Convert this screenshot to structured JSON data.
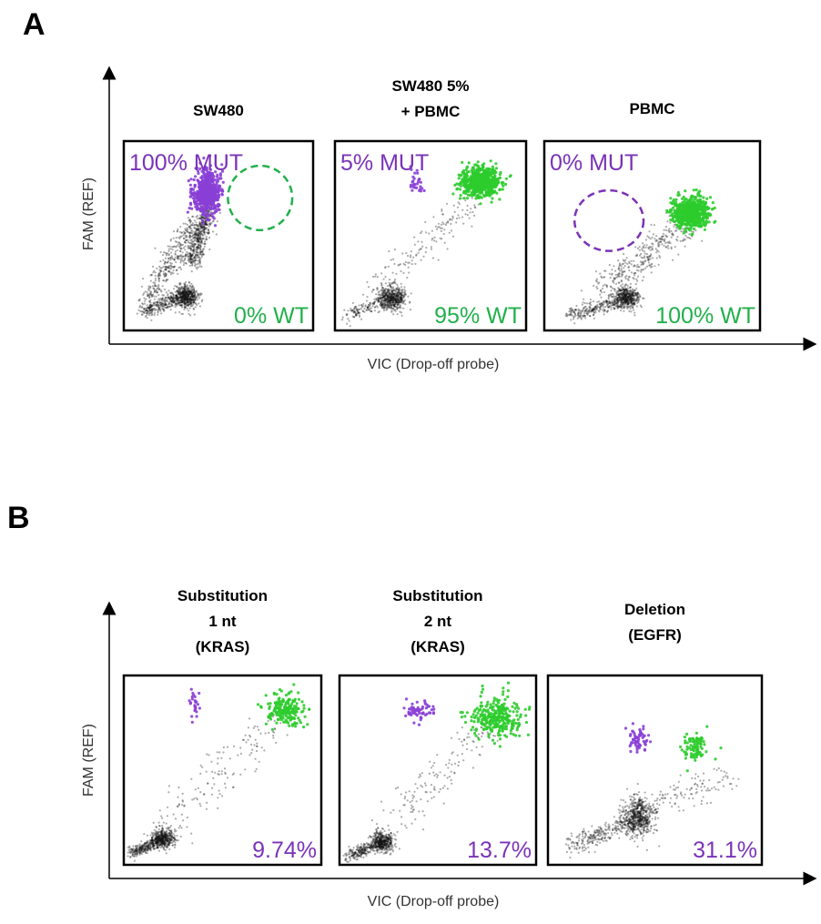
{
  "colors": {
    "mut": "#7a33b8",
    "wt": "#22b04b",
    "mut_dot": "#8a3fd6",
    "wt_dot": "#2ecc2e",
    "neg_dot": "#111111"
  },
  "chart_data": [
    {
      "type": "scatter",
      "panel": "A",
      "ylabel": "FAM (REF)",
      "xlabel": "VIC (Drop-off probe)",
      "xlim": [
        0,
        100
      ],
      "ylim": [
        0,
        100
      ],
      "subplots": [
        {
          "title": [
            "SW480"
          ],
          "mut_label": "100% MUT",
          "wt_label": "0% WT",
          "empty_gate": {
            "color": "wt",
            "cx": 72,
            "cy": 70,
            "rx": 17,
            "ry": 17
          },
          "clusters": [
            {
              "kind": "gauss",
              "color": "neg",
              "cx": 33,
              "cy": 18,
              "sx": 3,
              "sy": 3,
              "n": 500
            },
            {
              "kind": "line",
              "color": "neg",
              "x1": 10,
              "y1": 10,
              "x2": 32,
              "y2": 18,
              "sp": 2,
              "n": 300
            },
            {
              "kind": "line",
              "color": "neg",
              "x1": 12,
              "y1": 16,
              "x2": 40,
              "y2": 60,
              "sp": 3,
              "n": 350
            },
            {
              "kind": "line",
              "color": "neg",
              "x1": 36,
              "y1": 35,
              "x2": 44,
              "y2": 65,
              "sp": 2.5,
              "n": 500
            },
            {
              "kind": "gauss",
              "color": "mut",
              "cx": 44,
              "cy": 73,
              "sx": 3.5,
              "sy": 6,
              "n": 600
            }
          ]
        },
        {
          "title": [
            "SW480 5%",
            "+ PBMC"
          ],
          "mut_label": "5% MUT",
          "wt_label": "95% WT",
          "clusters": [
            {
              "kind": "gauss",
              "color": "neg",
              "cx": 30,
              "cy": 17,
              "sx": 3.5,
              "sy": 3,
              "n": 500
            },
            {
              "kind": "line",
              "color": "neg",
              "x1": 6,
              "y1": 8,
              "x2": 28,
              "y2": 16,
              "sp": 2,
              "n": 150
            },
            {
              "kind": "line",
              "color": "neg",
              "x1": 20,
              "y1": 20,
              "x2": 72,
              "y2": 68,
              "sp": 4,
              "n": 160
            },
            {
              "kind": "gauss",
              "color": "wt",
              "cx": 76,
              "cy": 78,
              "sx": 5,
              "sy": 4,
              "n": 600
            },
            {
              "kind": "gauss",
              "color": "mut",
              "cx": 43,
              "cy": 78,
              "sx": 2,
              "sy": 3,
              "n": 30
            }
          ]
        },
        {
          "title": [
            "PBMC"
          ],
          "mut_label": "0% MUT",
          "wt_label": "100% WT",
          "empty_gate": {
            "color": "mut",
            "cx": 30,
            "cy": 58,
            "rx": 16,
            "ry": 16
          },
          "clusters": [
            {
              "kind": "gauss",
              "color": "neg",
              "cx": 38,
              "cy": 17,
              "sx": 3,
              "sy": 3,
              "n": 450
            },
            {
              "kind": "line",
              "color": "neg",
              "x1": 12,
              "y1": 8,
              "x2": 36,
              "y2": 16,
              "sp": 2,
              "n": 250
            },
            {
              "kind": "line",
              "color": "neg",
              "x1": 25,
              "y1": 20,
              "x2": 66,
              "y2": 56,
              "sp": 4,
              "n": 350
            },
            {
              "kind": "gauss",
              "color": "wt",
              "cx": 68,
              "cy": 62,
              "sx": 4,
              "sy": 4,
              "n": 650
            }
          ]
        }
      ]
    },
    {
      "type": "scatter",
      "panel": "B",
      "ylabel": "FAM (REF)",
      "xlabel": "VIC (Drop-off probe)",
      "xlim": [
        0,
        100
      ],
      "ylim": [
        0,
        100
      ],
      "subplots": [
        {
          "title": [
            "Substitution",
            "1 nt",
            "(KRAS)"
          ],
          "value_label": "9.74%",
          "clusters": [
            {
              "kind": "gauss",
              "color": "neg",
              "cx": 20,
              "cy": 14,
              "sx": 3,
              "sy": 2.5,
              "n": 400
            },
            {
              "kind": "line",
              "color": "neg",
              "x1": 3,
              "y1": 6,
              "x2": 20,
              "y2": 13,
              "sp": 1.5,
              "n": 300
            },
            {
              "kind": "line",
              "color": "neg",
              "x1": 22,
              "y1": 20,
              "x2": 78,
              "y2": 78,
              "sp": 5,
              "n": 150
            },
            {
              "kind": "gauss",
              "color": "wt",
              "cx": 82,
              "cy": 82,
              "sx": 5,
              "sy": 4,
              "n": 200
            },
            {
              "kind": "gauss",
              "color": "mut",
              "cx": 36,
              "cy": 85,
              "sx": 1.5,
              "sy": 4,
              "n": 25
            }
          ]
        },
        {
          "title": [
            "Substitution",
            "2 nt",
            "(KRAS)"
          ],
          "value_label": "13.7%",
          "clusters": [
            {
              "kind": "gauss",
              "color": "neg",
              "cx": 22,
              "cy": 12,
              "sx": 3,
              "sy": 2.5,
              "n": 400
            },
            {
              "kind": "line",
              "color": "neg",
              "x1": 4,
              "y1": 4,
              "x2": 22,
              "y2": 12,
              "sp": 1.5,
              "n": 250
            },
            {
              "kind": "line",
              "color": "neg",
              "x1": 24,
              "y1": 18,
              "x2": 76,
              "y2": 74,
              "sp": 5,
              "n": 150
            },
            {
              "kind": "gauss",
              "color": "wt",
              "cx": 80,
              "cy": 78,
              "sx": 6,
              "sy": 5,
              "n": 300
            },
            {
              "kind": "gauss",
              "color": "mut",
              "cx": 40,
              "cy": 81,
              "sx": 4,
              "sy": 3,
              "n": 60
            }
          ]
        },
        {
          "title": [
            "Deletion",
            "(EGFR)"
          ],
          "value_label": "31.1%",
          "clusters": [
            {
              "kind": "gauss",
              "color": "neg",
              "cx": 42,
              "cy": 25,
              "sx": 3.5,
              "sy": 5,
              "n": 600
            },
            {
              "kind": "line",
              "color": "neg",
              "x1": 10,
              "y1": 10,
              "x2": 40,
              "y2": 24,
              "sp": 2.5,
              "n": 250
            },
            {
              "kind": "line",
              "color": "neg",
              "x1": 45,
              "y1": 30,
              "x2": 85,
              "y2": 45,
              "sp": 4,
              "n": 120
            },
            {
              "kind": "gauss",
              "color": "wt",
              "cx": 69,
              "cy": 62,
              "sx": 3,
              "sy": 4,
              "n": 90
            },
            {
              "kind": "gauss",
              "color": "mut",
              "cx": 42,
              "cy": 66,
              "sx": 2,
              "sy": 4,
              "n": 60
            }
          ]
        }
      ]
    }
  ]
}
